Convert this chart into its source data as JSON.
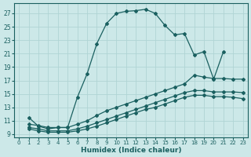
{
  "xlabel": "Humidex (Indice chaleur)",
  "background_color": "#cce8e8",
  "grid_color": "#b0d4d4",
  "line_color": "#1a6060",
  "xlim": [
    -0.5,
    23.5
  ],
  "ylim": [
    8.5,
    28.5
  ],
  "xticks": [
    0,
    1,
    2,
    3,
    4,
    5,
    6,
    7,
    8,
    9,
    10,
    11,
    12,
    13,
    14,
    15,
    16,
    17,
    18,
    19,
    20,
    21,
    22,
    23
  ],
  "yticks": [
    9,
    11,
    13,
    15,
    17,
    19,
    21,
    23,
    25,
    27
  ],
  "series": [
    {
      "x": [
        1,
        2,
        3,
        4,
        5,
        6,
        7,
        8,
        9,
        10,
        11,
        12,
        13,
        14,
        15,
        16,
        17,
        18,
        19,
        20,
        21
      ],
      "y": [
        11.5,
        10.2,
        9.8,
        10.0,
        10.0,
        14.5,
        18.0,
        22.5,
        25.5,
        27.0,
        27.3,
        27.4,
        27.6,
        27.0,
        25.2,
        23.8,
        24.0,
        20.8,
        21.3,
        17.2,
        21.3
      ]
    },
    {
      "x": [
        1,
        2,
        3,
        4,
        5,
        6,
        7,
        8,
        9,
        10,
        11,
        12,
        13,
        14,
        15,
        16,
        17,
        18,
        19,
        20,
        21,
        22,
        23
      ],
      "y": [
        10.5,
        10.3,
        10.0,
        10.0,
        10.0,
        10.5,
        11.0,
        11.8,
        12.5,
        13.0,
        13.5,
        14.0,
        14.5,
        15.0,
        15.5,
        16.0,
        16.5,
        17.8,
        17.5,
        17.3,
        17.3,
        17.2,
        17.2
      ]
    },
    {
      "x": [
        1,
        2,
        3,
        4,
        5,
        6,
        7,
        8,
        9,
        10,
        11,
        12,
        13,
        14,
        15,
        16,
        17,
        18,
        19,
        20,
        21,
        22,
        23
      ],
      "y": [
        10.0,
        9.8,
        9.5,
        9.5,
        9.5,
        9.8,
        10.2,
        10.7,
        11.2,
        11.7,
        12.2,
        12.7,
        13.2,
        13.7,
        14.2,
        14.7,
        15.2,
        15.5,
        15.5,
        15.3,
        15.3,
        15.3,
        15.2
      ]
    },
    {
      "x": [
        1,
        2,
        3,
        4,
        5,
        6,
        7,
        8,
        9,
        10,
        11,
        12,
        13,
        14,
        15,
        16,
        17,
        18,
        19,
        20,
        21,
        22,
        23
      ],
      "y": [
        9.8,
        9.5,
        9.3,
        9.3,
        9.3,
        9.5,
        9.8,
        10.2,
        10.7,
        11.2,
        11.7,
        12.2,
        12.7,
        13.0,
        13.5,
        14.0,
        14.5,
        14.8,
        14.8,
        14.6,
        14.6,
        14.5,
        14.3
      ]
    }
  ]
}
